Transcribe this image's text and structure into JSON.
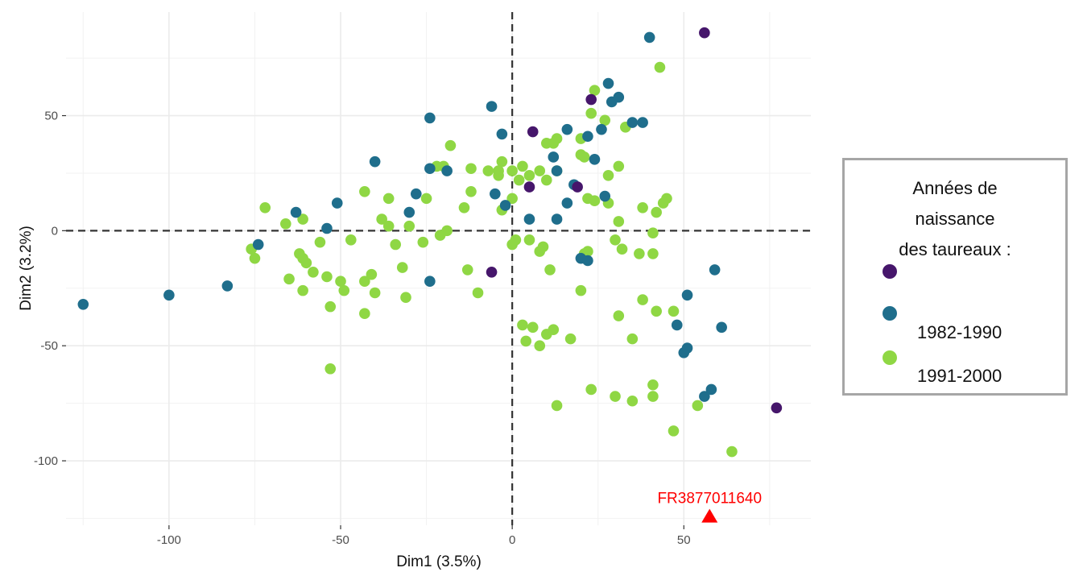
{
  "chart_data": {
    "type": "scatter",
    "xlabel": "Dim1 (3.5%)",
    "ylabel": "Dim2 (3.2%)",
    "xlim": [
      -130,
      87
    ],
    "ylim": [
      -128,
      95
    ],
    "x_ticks": [
      -100,
      -50,
      0,
      50
    ],
    "y_ticks": [
      50,
      0,
      -50,
      -100
    ],
    "grid": true,
    "reference_lines": {
      "x": 0,
      "y": 0,
      "style": "dashed"
    },
    "legend": {
      "title_lines": [
        "Années de",
        "naissance",
        "des taureaux :"
      ],
      "placement": "right",
      "entries": [
        {
          "label": "",
          "color": "#46166b"
        },
        {
          "label": "1982-1990",
          "color": "#1f6e8c"
        },
        {
          "label": "1991-2000",
          "color": "#8fd744"
        }
      ]
    },
    "annotation": {
      "label": "FR3877011640",
      "x": 57.5,
      "y": -124,
      "color": "#ff0000",
      "marker": "triangle"
    },
    "series": [
      {
        "name": "",
        "color": "#46166b",
        "points": [
          [
            56,
            86
          ],
          [
            23,
            57
          ],
          [
            6,
            43
          ],
          [
            5,
            19
          ],
          [
            19,
            19
          ],
          [
            -6,
            -18
          ],
          [
            77,
            -77
          ]
        ]
      },
      {
        "name": "1982-1990",
        "color": "#1f6e8c",
        "points": [
          [
            40,
            84
          ],
          [
            28,
            64
          ],
          [
            29,
            56
          ],
          [
            31,
            58
          ],
          [
            -6,
            54
          ],
          [
            -24,
            49
          ],
          [
            -3,
            42
          ],
          [
            16,
            44
          ],
          [
            12,
            32
          ],
          [
            13,
            26
          ],
          [
            22,
            41
          ],
          [
            24,
            31
          ],
          [
            26,
            44
          ],
          [
            35,
            47
          ],
          [
            38,
            47
          ],
          [
            -40,
            30
          ],
          [
            -24,
            27
          ],
          [
            -19,
            26
          ],
          [
            -28,
            16
          ],
          [
            -5,
            16
          ],
          [
            -2,
            11
          ],
          [
            16,
            12
          ],
          [
            18,
            20
          ],
          [
            27,
            15
          ],
          [
            -63,
            8
          ],
          [
            -51,
            12
          ],
          [
            -54,
            1
          ],
          [
            -30,
            8
          ],
          [
            5,
            5
          ],
          [
            13,
            5
          ],
          [
            20,
            -12
          ],
          [
            22,
            -13
          ],
          [
            -74,
            -6
          ],
          [
            -83,
            -24
          ],
          [
            -100,
            -28
          ],
          [
            -125,
            -32
          ],
          [
            -24,
            -22
          ],
          [
            59,
            -17
          ],
          [
            51,
            -28
          ],
          [
            48,
            -41
          ],
          [
            61,
            -42
          ],
          [
            50,
            -53
          ],
          [
            51,
            -51
          ],
          [
            56,
            -72
          ],
          [
            58,
            -69
          ]
        ]
      },
      {
        "name": "1991-2000",
        "color": "#8fd744",
        "points": [
          [
            43,
            71
          ],
          [
            24,
            61
          ],
          [
            23,
            51
          ],
          [
            27,
            48
          ],
          [
            20,
            40
          ],
          [
            13,
            40
          ],
          [
            12,
            38
          ],
          [
            10,
            38
          ],
          [
            20,
            33
          ],
          [
            21,
            32
          ],
          [
            33,
            45
          ],
          [
            -3,
            30
          ],
          [
            -4,
            26
          ],
          [
            0,
            26
          ],
          [
            3,
            28
          ],
          [
            8,
            26
          ],
          [
            -18,
            37
          ],
          [
            -22,
            28
          ],
          [
            -20,
            28
          ],
          [
            -12,
            27
          ],
          [
            5,
            24
          ],
          [
            10,
            22
          ],
          [
            13,
            26
          ],
          [
            28,
            24
          ],
          [
            31,
            28
          ],
          [
            -7,
            26
          ],
          [
            -4,
            24
          ],
          [
            -25,
            14
          ],
          [
            -36,
            14
          ],
          [
            -43,
            17
          ],
          [
            -12,
            17
          ],
          [
            -14,
            10
          ],
          [
            -3,
            9
          ],
          [
            0,
            14
          ],
          [
            2,
            22
          ],
          [
            22,
            14
          ],
          [
            24,
            13
          ],
          [
            28,
            12
          ],
          [
            38,
            10
          ],
          [
            42,
            8
          ],
          [
            44,
            12
          ],
          [
            45,
            14
          ],
          [
            -72,
            10
          ],
          [
            -66,
            3
          ],
          [
            -61,
            5
          ],
          [
            -56,
            -5
          ],
          [
            -47,
            -4
          ],
          [
            -38,
            5
          ],
          [
            -36,
            2
          ],
          [
            -30,
            2
          ],
          [
            -34,
            -6
          ],
          [
            -19,
            0
          ],
          [
            -21,
            -2
          ],
          [
            -26,
            -5
          ],
          [
            -32,
            -16
          ],
          [
            -43,
            -22
          ],
          [
            -40,
            -27
          ],
          [
            -41,
            -19
          ],
          [
            -50,
            -22
          ],
          [
            -49,
            -26
          ],
          [
            -53,
            -33
          ],
          [
            -54,
            -20
          ],
          [
            -58,
            -18
          ],
          [
            -61,
            -12
          ],
          [
            -60,
            -14
          ],
          [
            -62,
            -10
          ],
          [
            -65,
            -21
          ],
          [
            -61,
            -26
          ],
          [
            -75,
            -12
          ],
          [
            -76,
            -8
          ],
          [
            -43,
            -36
          ],
          [
            -31,
            -29
          ],
          [
            -10,
            -27
          ],
          [
            -13,
            -17
          ],
          [
            0,
            -6
          ],
          [
            1,
            -4
          ],
          [
            5,
            -4
          ],
          [
            9,
            -7
          ],
          [
            11,
            -17
          ],
          [
            8,
            -9
          ],
          [
            20,
            -26
          ],
          [
            21,
            -10
          ],
          [
            22,
            -9
          ],
          [
            30,
            -4
          ],
          [
            32,
            -8
          ],
          [
            37,
            -10
          ],
          [
            41,
            -10
          ],
          [
            41,
            -1
          ],
          [
            31,
            4
          ],
          [
            38,
            -30
          ],
          [
            42,
            -35
          ],
          [
            47,
            -35
          ],
          [
            31,
            -37
          ],
          [
            35,
            -47
          ],
          [
            3,
            -41
          ],
          [
            6,
            -42
          ],
          [
            4,
            -48
          ],
          [
            8,
            -50
          ],
          [
            10,
            -45
          ],
          [
            12,
            -43
          ],
          [
            17,
            -47
          ],
          [
            -53,
            -60
          ],
          [
            13,
            -76
          ],
          [
            23,
            -69
          ],
          [
            30,
            -72
          ],
          [
            35,
            -74
          ],
          [
            41,
            -67
          ],
          [
            41,
            -72
          ],
          [
            47,
            -87
          ],
          [
            54,
            -76
          ],
          [
            64,
            -96
          ]
        ]
      }
    ]
  }
}
